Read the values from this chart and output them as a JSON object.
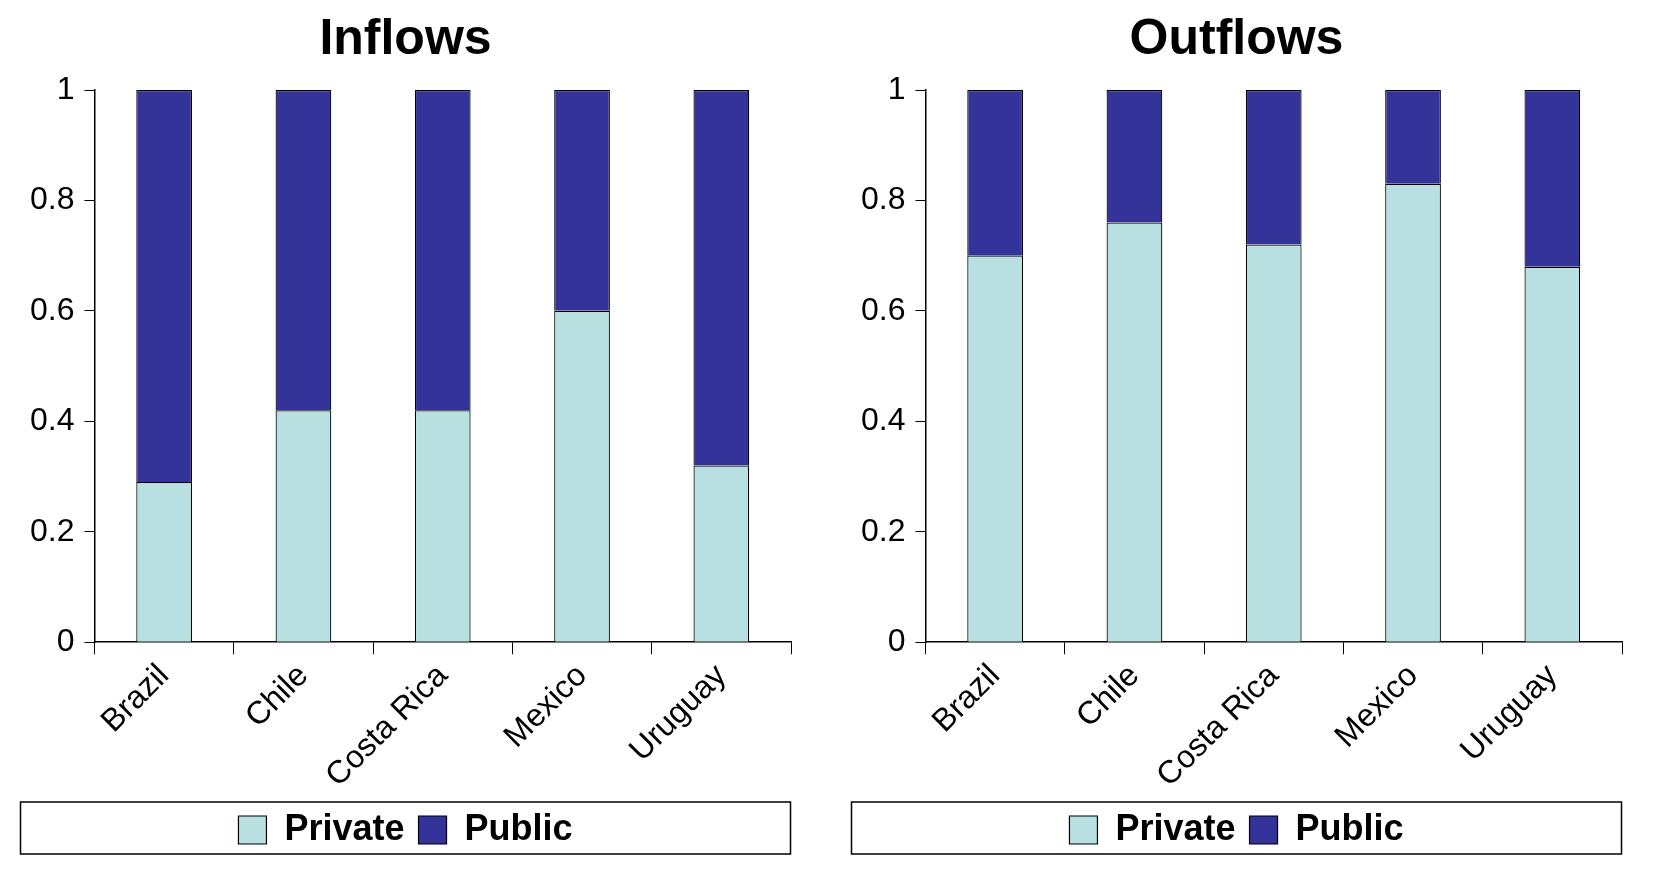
{
  "chart_data": [
    {
      "type": "bar",
      "title": "Inflows",
      "categories": [
        "Brazil",
        "Chile",
        "Costa Rica",
        "Mexico",
        "Uruguay"
      ],
      "stacked": true,
      "ylim": [
        0,
        1
      ],
      "yticks": [
        0,
        0.2,
        0.4,
        0.6,
        0.8,
        1
      ],
      "grid": false,
      "legend": "bottom",
      "series": [
        {
          "name": "Private",
          "color": "#b9e0e0",
          "values": [
            0.29,
            0.42,
            0.42,
            0.6,
            0.32
          ]
        },
        {
          "name": "Public",
          "color": "#333399",
          "values": [
            0.71,
            0.58,
            0.58,
            0.4,
            0.68
          ]
        }
      ]
    },
    {
      "type": "bar",
      "title": "Outflows",
      "categories": [
        "Brazil",
        "Chile",
        "Costa Rica",
        "Mexico",
        "Uruguay"
      ],
      "stacked": true,
      "ylim": [
        0,
        1
      ],
      "yticks": [
        0,
        0.2,
        0.4,
        0.6,
        0.8,
        1
      ],
      "grid": false,
      "legend": "bottom",
      "series": [
        {
          "name": "Private",
          "color": "#b9e0e0",
          "values": [
            0.7,
            0.76,
            0.72,
            0.83,
            0.68
          ]
        },
        {
          "name": "Public",
          "color": "#333399",
          "values": [
            0.3,
            0.24,
            0.28,
            0.17,
            0.32
          ]
        }
      ]
    }
  ]
}
